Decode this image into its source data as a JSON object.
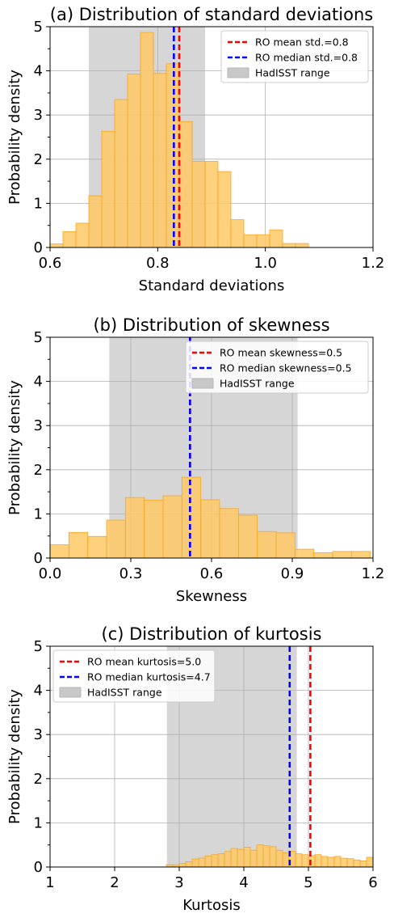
{
  "colors": {
    "bar_fill": "#ffc966",
    "bar_edge": "#f5a623",
    "shade": "#c8c8c8",
    "mean_line": "#ff0000",
    "median_line": "#0000ff",
    "grid": "#b0b0b0"
  },
  "chart_data": [
    {
      "type": "histogram",
      "panel": "a",
      "title": "(a) Distribution of standard deviations",
      "xlabel": "Standard deviations",
      "ylabel": "Probability density",
      "xlim": [
        0.6,
        1.2
      ],
      "ylim": [
        0,
        5
      ],
      "xticks": [
        0.6,
        0.8,
        1.0,
        1.2
      ],
      "xtick_labels": [
        "0.6",
        "0.8",
        "1.0",
        "1.2"
      ],
      "yticks": [
        0,
        1,
        2,
        3,
        4,
        5
      ],
      "ytick_labels": [
        "0",
        "1",
        "2",
        "3",
        "4",
        "5"
      ],
      "grid": true,
      "bin_edges": [
        0.6,
        0.624,
        0.648,
        0.672,
        0.696,
        0.72,
        0.744,
        0.768,
        0.792,
        0.816,
        0.84,
        0.864,
        0.888,
        0.912,
        0.936,
        0.96,
        0.984,
        1.008,
        1.032,
        1.056,
        1.08,
        1.104,
        1.128,
        1.152,
        1.176
      ],
      "values": [
        0.08,
        0.36,
        0.55,
        1.17,
        2.63,
        3.35,
        3.93,
        4.87,
        3.94,
        4.16,
        2.85,
        1.95,
        1.95,
        1.72,
        0.63,
        0.29,
        0.29,
        0.4,
        0.09,
        0.09,
        0,
        0,
        0,
        0
      ],
      "hadisst_range": [
        0.672,
        0.888
      ],
      "mean": 0.84,
      "median": 0.83,
      "legend_position": "upper right",
      "legend": [
        "RO mean std.=0.8",
        "RO median std.=0.8",
        "HadISST range"
      ]
    },
    {
      "type": "histogram",
      "panel": "b",
      "title": "(b) Distribution of skewness",
      "xlabel": "Skewness",
      "ylabel": "Probability density",
      "xlim": [
        0.0,
        1.2
      ],
      "ylim": [
        0,
        5
      ],
      "xticks": [
        0.0,
        0.3,
        0.6,
        0.9,
        1.2
      ],
      "xtick_labels": [
        "0.0",
        "0.3",
        "0.6",
        "0.9",
        "1.2"
      ],
      "yticks": [
        0,
        1,
        2,
        3,
        4,
        5
      ],
      "ytick_labels": [
        "0",
        "1",
        "2",
        "3",
        "4",
        "5"
      ],
      "grid": true,
      "bin_edges": [
        0.0,
        0.07,
        0.14,
        0.21,
        0.28,
        0.35,
        0.42,
        0.49,
        0.56,
        0.63,
        0.7,
        0.77,
        0.84,
        0.91,
        0.98,
        1.05,
        1.12,
        1.19
      ],
      "values": [
        0.3,
        0.58,
        0.49,
        0.86,
        1.37,
        1.31,
        1.41,
        1.83,
        1.32,
        1.12,
        0.97,
        0.6,
        0.57,
        0.2,
        0.12,
        0.15,
        0.15
      ],
      "hadisst_range": [
        0.22,
        0.92
      ],
      "mean": 0.52,
      "median": 0.52,
      "legend_position": "upper right",
      "legend": [
        "RO mean skewness=0.5",
        "RO median skewness=0.5",
        "HadISST range"
      ]
    },
    {
      "type": "histogram",
      "panel": "c",
      "title": "(c) Distribution of kurtosis",
      "xlabel": "Kurtosis",
      "ylabel": "Probability density",
      "xlim": [
        1,
        6
      ],
      "ylim": [
        0,
        5
      ],
      "xticks": [
        1,
        2,
        3,
        4,
        5,
        6
      ],
      "xtick_labels": [
        "1",
        "2",
        "3",
        "4",
        "5",
        "6"
      ],
      "yticks": [
        0,
        1,
        2,
        3,
        4,
        5
      ],
      "ytick_labels": [
        "0",
        "1",
        "2",
        "3",
        "4",
        "5"
      ],
      "grid": true,
      "bin_edges": [
        2.8,
        2.9,
        3.0,
        3.1,
        3.2,
        3.3,
        3.4,
        3.5,
        3.6,
        3.7,
        3.8,
        3.9,
        4.0,
        4.1,
        4.2,
        4.3,
        4.4,
        4.5,
        4.6,
        4.7,
        4.8,
        4.9,
        5.0,
        5.1,
        5.2,
        5.3,
        5.4,
        5.5,
        5.6,
        5.7,
        5.8,
        5.9,
        6.0
      ],
      "values": [
        0.05,
        0.05,
        0.08,
        0.12,
        0.18,
        0.2,
        0.25,
        0.28,
        0.3,
        0.35,
        0.42,
        0.4,
        0.45,
        0.38,
        0.5,
        0.48,
        0.46,
        0.38,
        0.32,
        0.36,
        0.3,
        0.28,
        0.26,
        0.28,
        0.24,
        0.22,
        0.24,
        0.2,
        0.19,
        0.16,
        0.14,
        0.22
      ],
      "hadisst_range": [
        2.81,
        4.82
      ],
      "mean": 5.03,
      "median": 4.71,
      "legend_position": "upper left",
      "legend": [
        "RO mean kurtosis=5.0",
        "RO median kurtosis=4.7",
        "HadISST range"
      ]
    }
  ]
}
